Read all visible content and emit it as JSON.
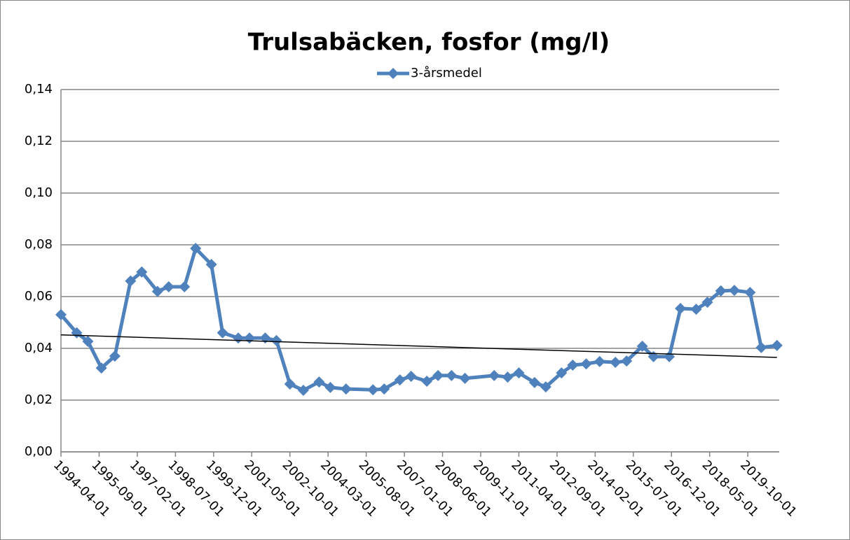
{
  "chart_data": {
    "type": "line",
    "title": "Trulsabäcken, fosfor (mg/l)",
    "x": [
      "1994-04-01",
      "1994-11-01",
      "1995-04-01",
      "1995-10-01",
      "1996-04-01",
      "1996-11-01",
      "1997-04-01",
      "1997-11-01",
      "1998-04-01",
      "1998-11-01",
      "1999-04-01",
      "1999-11-01",
      "2000-04-01",
      "2000-11-01",
      "2001-04-01",
      "2001-11-01",
      "2002-04-01",
      "2002-10-01",
      "2003-04-01",
      "2003-11-01",
      "2004-04-01",
      "2004-11-01",
      "2005-11-01",
      "2006-04-01",
      "2006-11-01",
      "2007-04-01",
      "2007-11-01",
      "2008-04-01",
      "2008-10-01",
      "2009-04-01",
      "2010-05-01",
      "2010-11-01",
      "2011-04-01",
      "2011-11-01",
      "2012-04-01",
      "2012-11-01",
      "2013-04-01",
      "2013-10-01",
      "2014-04-01",
      "2014-11-01",
      "2015-04-01",
      "2015-11-01",
      "2016-04-01",
      "2016-11-01",
      "2017-04-01",
      "2017-11-01",
      "2018-04-01",
      "2018-10-01",
      "2019-04-01",
      "2019-11-01",
      "2020-04-01",
      "2020-11-01"
    ],
    "series": [
      {
        "name": "3-årsmedel",
        "color": "#4f81bd",
        "values": [
          0.053,
          0.046,
          0.0427,
          0.0324,
          0.037,
          0.066,
          0.0695,
          0.062,
          0.0638,
          0.0638,
          0.0786,
          0.0724,
          0.046,
          0.044,
          0.044,
          0.044,
          0.043,
          0.0262,
          0.0238,
          0.027,
          0.0249,
          0.0243,
          0.024,
          0.0243,
          0.0278,
          0.0292,
          0.0273,
          0.0295,
          0.0295,
          0.0284,
          0.0295,
          0.0289,
          0.0305,
          0.0268,
          0.0251,
          0.0305,
          0.0335,
          0.034,
          0.0349,
          0.0346,
          0.0351,
          0.0408,
          0.0368,
          0.0368,
          0.0554,
          0.0551,
          0.0578,
          0.0622,
          0.0624,
          0.0616,
          0.0403,
          0.0411
        ]
      }
    ],
    "trendline": {
      "color": "#000000",
      "values": [
        0.0452,
        0.0365
      ]
    },
    "xlim": [
      "1994-04-01",
      "2020-12-01"
    ],
    "xticks": [
      "1994-04-01",
      "1995-09-01",
      "1997-02-01",
      "1998-07-01",
      "1999-12-01",
      "2001-05-01",
      "2002-10-01",
      "2004-03-01",
      "2005-08-01",
      "2007-01-01",
      "2008-06-01",
      "2009-11-01",
      "2011-04-01",
      "2012-09-01",
      "2014-02-01",
      "2015-07-01",
      "2016-12-01",
      "2018-05-01",
      "2019-10-01"
    ],
    "ylim": [
      0,
      0.14
    ],
    "yticks": [
      {
        "value": 0,
        "label": "0,00"
      },
      {
        "value": 0.02,
        "label": "0,02"
      },
      {
        "value": 0.04,
        "label": "0,04"
      },
      {
        "value": 0.06,
        "label": "0,06"
      },
      {
        "value": 0.08,
        "label": "0,08"
      },
      {
        "value": 0.1,
        "label": "0,10"
      },
      {
        "value": 0.12,
        "label": "0,12"
      },
      {
        "value": 0.14,
        "label": "0,14"
      }
    ],
    "grid": true,
    "legend": "top"
  }
}
